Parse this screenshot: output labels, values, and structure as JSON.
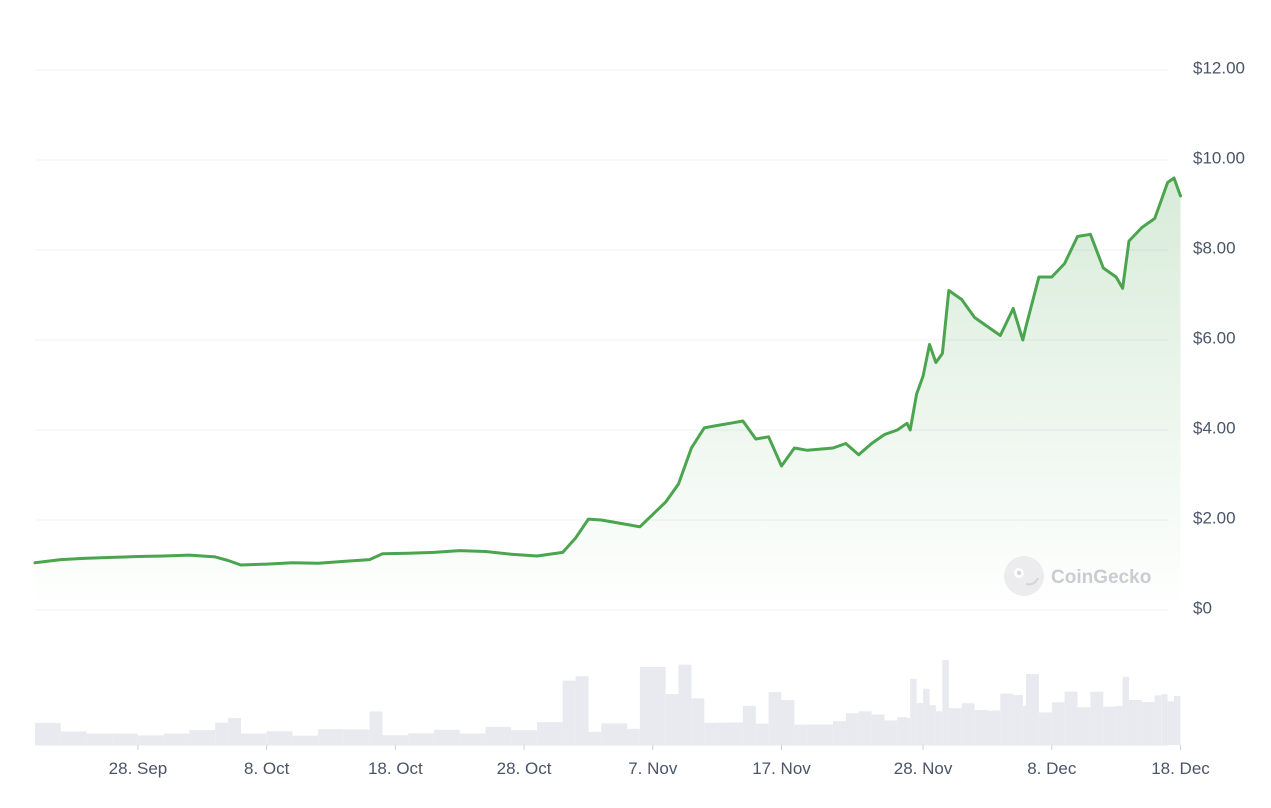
{
  "chart_data": {
    "type": "area",
    "y_ticks": [
      "$12.00",
      "$10.00",
      "$8.00",
      "$6.00",
      "$4.00",
      "$2.00",
      "$0"
    ],
    "y_tick_values": [
      12,
      10,
      8,
      6,
      4,
      2,
      0
    ],
    "ylim": [
      0,
      12
    ],
    "x_ticks": [
      "28. Sep",
      "8. Oct",
      "18. Oct",
      "28. Oct",
      "7. Nov",
      "17. Nov",
      "28. Nov",
      "8. Dec",
      "18. Dec"
    ],
    "x_tick_dates": [
      "2024-09-28",
      "2024-10-08",
      "2024-10-18",
      "2024-10-28",
      "2024-11-07",
      "2024-11-17",
      "2024-11-28",
      "2024-12-08",
      "2024-12-18"
    ],
    "xlim": [
      "2024-09-20",
      "2024-12-18"
    ],
    "grid": true,
    "legend": "none",
    "series": [
      {
        "values": [
          [
            "2024-09-20",
            1.05
          ],
          [
            "2024-09-22",
            1.12
          ],
          [
            "2024-09-24",
            1.15
          ],
          [
            "2024-09-26",
            1.17
          ],
          [
            "2024-09-28",
            1.19
          ],
          [
            "2024-09-30",
            1.2
          ],
          [
            "2024-10-02",
            1.22
          ],
          [
            "2024-10-04",
            1.18
          ],
          [
            "2024-10-05",
            1.1
          ],
          [
            "2024-10-06",
            1.0
          ],
          [
            "2024-10-08",
            1.02
          ],
          [
            "2024-10-10",
            1.05
          ],
          [
            "2024-10-12",
            1.04
          ],
          [
            "2024-10-14",
            1.08
          ],
          [
            "2024-10-16",
            1.12
          ],
          [
            "2024-10-17",
            1.25
          ],
          [
            "2024-10-19",
            1.26
          ],
          [
            "2024-10-21",
            1.28
          ],
          [
            "2024-10-23",
            1.32
          ],
          [
            "2024-10-25",
            1.3
          ],
          [
            "2024-10-27",
            1.24
          ],
          [
            "2024-10-29",
            1.2
          ],
          [
            "2024-10-31",
            1.28
          ],
          [
            "2024-11-01",
            1.6
          ],
          [
            "2024-11-02",
            2.02
          ],
          [
            "2024-11-03",
            2.0
          ],
          [
            "2024-11-05",
            1.9
          ],
          [
            "2024-11-06",
            1.85
          ],
          [
            "2024-11-08",
            2.4
          ],
          [
            "2024-11-09",
            2.8
          ],
          [
            "2024-11-10",
            3.6
          ],
          [
            "2024-11-11",
            4.05
          ],
          [
            "2024-11-12",
            4.1
          ],
          [
            "2024-11-13",
            4.15
          ],
          [
            "2024-11-14",
            4.2
          ],
          [
            "2024-11-15",
            3.8
          ],
          [
            "2024-11-16",
            3.85
          ],
          [
            "2024-11-17",
            3.2
          ],
          [
            "2024-11-18",
            3.6
          ],
          [
            "2024-11-19",
            3.55
          ],
          [
            "2024-11-21",
            3.6
          ],
          [
            "2024-11-22",
            3.7
          ],
          [
            "2024-11-23",
            3.45
          ],
          [
            "2024-11-24",
            3.7
          ],
          [
            "2024-11-25",
            3.9
          ],
          [
            "2024-11-26",
            4.0
          ],
          [
            "2024-11-26T18:00",
            4.15
          ],
          [
            "2024-11-27",
            4.0
          ],
          [
            "2024-11-27T12:00",
            4.8
          ],
          [
            "2024-11-28",
            5.2
          ],
          [
            "2024-11-28T12:00",
            5.9
          ],
          [
            "2024-11-29",
            5.5
          ],
          [
            "2024-11-29T12:00",
            5.7
          ],
          [
            "2024-11-30",
            7.1
          ],
          [
            "2024-12-01",
            6.9
          ],
          [
            "2024-12-02",
            6.5
          ],
          [
            "2024-12-03",
            6.3
          ],
          [
            "2024-12-04",
            6.1
          ],
          [
            "2024-12-05",
            6.7
          ],
          [
            "2024-12-05T18:00",
            6.0
          ],
          [
            "2024-12-06",
            6.3
          ],
          [
            "2024-12-07",
            7.4
          ],
          [
            "2024-12-08",
            7.4
          ],
          [
            "2024-12-09",
            7.7
          ],
          [
            "2024-12-10",
            8.3
          ],
          [
            "2024-12-11",
            8.35
          ],
          [
            "2024-12-12",
            7.6
          ],
          [
            "2024-12-13",
            7.4
          ],
          [
            "2024-12-13T12:00",
            7.15
          ],
          [
            "2024-12-14",
            8.2
          ],
          [
            "2024-12-15",
            8.5
          ],
          [
            "2024-12-16",
            8.7
          ],
          [
            "2024-12-16T12:00",
            9.1
          ],
          [
            "2024-12-17",
            9.5
          ],
          [
            "2024-12-17T12:00",
            9.6
          ],
          [
            "2024-12-18",
            9.2
          ]
        ]
      }
    ],
    "line_color": "#4ba54f",
    "fill_color": "#4ba54f",
    "volume_color": "#e8eaf0"
  },
  "watermark": {
    "text": "CoinGecko",
    "icon": "gecko-logo-icon"
  }
}
